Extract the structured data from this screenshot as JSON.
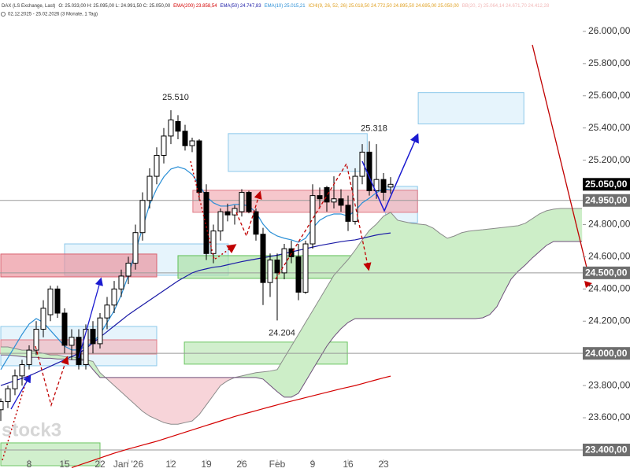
{
  "chart_data": {
    "type": "candlestick",
    "header": [
      {
        "text": "DAX (LS Exchange, Last)",
        "color": "#333333"
      },
      {
        "text": "O: 25.033,00 H: 25.095,00 L: 24.991,50 C: 25.050,00",
        "color": "#333333"
      },
      {
        "text": "EMA(200) 23.858,54",
        "color": "#d40000"
      },
      {
        "text": "EMA(50) 24.747,83",
        "color": "#1a1aa6"
      },
      {
        "text": "EMA(10) 25.015,21",
        "color": "#2a8fd6"
      },
      {
        "text": "ICHI(9, 26, 52, 26) 25.018,50 24.772,50 24.895,50 24.695,00 25.050,00",
        "color": "#e0a020"
      },
      {
        "text": "BB(20, 2) 25.064,14 24.671,70 24.412,28",
        "color": "#f2b8b8"
      }
    ],
    "period": "02.12.2025 - 25.02.2026 (3 Monate, 1 Tag)",
    "watermark": "stock3",
    "categories": [
      null,
      null,
      null,
      null,
      "8",
      null,
      null,
      null,
      null,
      "15",
      null,
      null,
      null,
      null,
      "22",
      null,
      null,
      null,
      "Jan '26",
      null,
      null,
      null,
      null,
      null,
      "12",
      null,
      null,
      null,
      null,
      "19",
      null,
      null,
      null,
      null,
      "26",
      null,
      null,
      null,
      null,
      "Feb",
      null,
      null,
      null,
      null,
      "9",
      null,
      null,
      null,
      null,
      "16",
      null,
      null,
      null,
      null,
      "23",
      null,
      null,
      null,
      null,
      null,
      null,
      null,
      null,
      null,
      null,
      null,
      null,
      null,
      null,
      null,
      null,
      null,
      null,
      null,
      null,
      null,
      null,
      null,
      null,
      null,
      null,
      null,
      null
    ],
    "open": [
      23650,
      23700,
      23780,
      23860,
      23930,
      24020,
      24150,
      24240,
      24400,
      24250,
      24050,
      24100,
      23930,
      24150,
      24060,
      24220,
      24300,
      24400,
      24480,
      24560,
      24750,
      24950,
      25100,
      25230,
      25350,
      25440,
      25380,
      25290,
      25320,
      25000,
      24620,
      24760,
      24880,
      24860,
      24880,
      25000,
      24880,
      24740,
      24440,
      24580,
      24500,
      24650,
      24600,
      24380,
      24680,
      24980,
      25030,
      24940,
      24960,
      24920,
      24820,
      25100,
      25250,
      25010,
      25080,
      25033,
      null,
      null,
      null,
      null,
      null,
      null,
      null,
      null,
      null,
      null,
      null,
      null,
      null,
      null,
      null,
      null,
      null,
      null,
      null,
      null,
      null,
      null,
      null,
      null,
      null,
      null,
      null
    ],
    "high": [
      23720,
      23800,
      23900,
      23960,
      24050,
      24200,
      24330,
      24420,
      24420,
      24280,
      24150,
      24150,
      24180,
      24200,
      24250,
      24350,
      24450,
      24520,
      24600,
      24800,
      25000,
      25150,
      25280,
      25400,
      25510,
      25480,
      25420,
      25340,
      25330,
      25050,
      24800,
      24900,
      24930,
      24920,
      25020,
      25010,
      24900,
      24780,
      24620,
      24620,
      24680,
      24700,
      24680,
      24700,
      25050,
      25030,
      25040,
      25100,
      25020,
      24980,
      25150,
      25300,
      25318,
      25300,
      25120,
      25095,
      null,
      null,
      null,
      null,
      null,
      null,
      null,
      null,
      null,
      null,
      null,
      null,
      null,
      null,
      null,
      null,
      null,
      null,
      null,
      null,
      null,
      null,
      null,
      null,
      null,
      null,
      null
    ],
    "low": [
      23580,
      23660,
      23740,
      23800,
      23900,
      23990,
      24100,
      24200,
      24220,
      24000,
      23960,
      23900,
      23900,
      24000,
      24030,
      24150,
      24250,
      24350,
      24430,
      24520,
      24700,
      24900,
      25050,
      25180,
      25300,
      25330,
      25260,
      25250,
      24950,
      24580,
      24560,
      24700,
      24820,
      24800,
      24850,
      24870,
      24700,
      24300,
      24350,
      24204,
      24460,
      24560,
      24330,
      24370,
      24650,
      24900,
      24880,
      24900,
      24880,
      24760,
      24800,
      25050,
      24980,
      24960,
      24950,
      24991.5,
      null,
      null,
      null,
      null,
      null,
      null,
      null,
      null,
      null,
      null,
      null,
      null,
      null,
      null,
      null,
      null,
      null,
      null,
      null,
      null,
      null,
      null,
      null,
      null,
      null,
      null,
      null
    ],
    "close": [
      23700,
      23780,
      23860,
      23930,
      24020,
      24150,
      24280,
      24400,
      24250,
      24050,
      24100,
      23930,
      24150,
      24060,
      24220,
      24300,
      24400,
      24480,
      24560,
      24750,
      24950,
      25100,
      25230,
      25350,
      25450,
      25380,
      25290,
      25320,
      25000,
      24620,
      24760,
      24880,
      24860,
      24900,
      25000,
      24880,
      24740,
      24440,
      24580,
      24500,
      24650,
      24600,
      24380,
      24680,
      24980,
      24960,
      24940,
      24960,
      24920,
      24820,
      25100,
      25250,
      25010,
      25080,
      25000,
      25050,
      null,
      null,
      null,
      null,
      null,
      null,
      null,
      null,
      null,
      null,
      null,
      null,
      null,
      null,
      null,
      null,
      null,
      null,
      null,
      null,
      null,
      null,
      null,
      null,
      null,
      null,
      null
    ],
    "candle_colors": {
      "up": "#ffffff",
      "down": "#000000",
      "edge": "#000000"
    },
    "series": [
      {
        "color": "#d40000",
        "values": [
          null,
          null,
          null,
          null,
          null,
          null,
          null,
          null,
          null,
          null,
          23290,
          23305,
          23320,
          23335,
          23350,
          23365,
          23380,
          23393,
          23406,
          23418,
          23430,
          23442,
          23454,
          23468,
          23482,
          23496,
          23510,
          23524,
          23538,
          23552,
          23566,
          23580,
          23594,
          23608,
          23620,
          23632,
          23644,
          23656,
          23668,
          23680,
          23692,
          23703,
          23714,
          23725,
          23736,
          23747,
          23758,
          23769,
          23780,
          23790,
          23800,
          23812,
          23824,
          23836,
          23848,
          23858.54,
          null,
          null,
          null,
          null,
          null,
          null,
          null,
          null,
          null,
          null,
          null,
          null,
          null,
          null,
          null,
          null,
          null,
          null,
          null,
          null,
          null,
          null,
          null,
          null,
          null,
          null,
          null
        ]
      },
      {
        "color": "#1a1aa6",
        "values": [
          23800,
          23815,
          23830,
          23845,
          23860,
          23880,
          23900,
          23920,
          23940,
          23960,
          23980,
          24000,
          24030,
          24065,
          24100,
          24135,
          24170,
          24205,
          24240,
          24270,
          24300,
          24330,
          24360,
          24390,
          24420,
          24450,
          24475,
          24500,
          24515,
          24525,
          24535,
          24540,
          24550,
          24560,
          24570,
          24578,
          24586,
          24594,
          24602,
          24610,
          24620,
          24630,
          24640,
          24650,
          24660,
          24670,
          24678,
          24686,
          24694,
          24700,
          24705,
          24715,
          24725,
          24735,
          24742,
          24747.83,
          null,
          null,
          null,
          null,
          null,
          null,
          null,
          null,
          null,
          null,
          null,
          null,
          null,
          null,
          null,
          null,
          null,
          null,
          null,
          null,
          null,
          null,
          null,
          null,
          null,
          null,
          null
        ]
      },
      {
        "color": "#2a8fd6",
        "values": [
          23899,
          23972,
          24045,
          24118,
          24182,
          24216,
          24192,
          24143,
          24094,
          24045,
          24021,
          24021,
          24045,
          24070,
          24118,
          24192,
          24265,
          24363,
          24485,
          24632,
          24778,
          24925,
          25023,
          25096,
          25145,
          25159,
          25145,
          25111,
          25047,
          24974,
          24935,
          24915,
          24915,
          24925,
          24925,
          24915,
          24876,
          24803,
          24754,
          24729,
          24715,
          24705,
          24690,
          24715,
          24778,
          24827,
          24852,
          24866,
          24866,
          24852,
          24886,
          24935,
          24964,
          24998,
          25023,
          25015.21,
          null,
          null,
          null,
          null,
          null,
          null,
          null,
          null,
          null,
          null,
          null,
          null,
          null,
          null,
          null,
          null,
          null,
          null,
          null,
          null,
          null,
          null,
          null,
          null,
          null,
          null,
          null
        ]
      }
    ],
    "cloud": {
      "up_fill": "#cdeec8",
      "down_fill": "#f7d4d9",
      "a": {
        "color": "#8a8a8a",
        "values": [
          24040,
          24040,
          24030,
          24020,
          24020,
          24010,
          24000,
          23990,
          23990,
          23980,
          23980,
          23970,
          23960,
          23950,
          23880,
          23840,
          23800,
          23760,
          23720,
          23680,
          23640,
          23610,
          23590,
          23570,
          23560,
          23560,
          23570,
          23580,
          23620,
          23680,
          23740,
          23800,
          23830,
          23850,
          23860,
          23870,
          23880,
          23885,
          23890,
          23899,
          23972,
          24045,
          24118,
          24192,
          24265,
          24338,
          24412,
          24485,
          24534,
          24583,
          24641,
          24705,
          24764,
          24803,
          24852,
          24876,
          24827,
          24817,
          24808,
          24803,
          24798,
          24778,
          24744,
          24715,
          24729,
          24749,
          24759,
          24764,
          24768,
          24773,
          24778,
          24783,
          24788,
          24793,
          24808,
          24837,
          24866,
          24886,
          24896,
          24900,
          24900,
          24900,
          24900
        ]
      },
      "b": {
        "color": "#6d4f7a",
        "values": [
          23990,
          23990,
          23985,
          23980,
          23975,
          23975,
          23970,
          23970,
          23965,
          23965,
          23960,
          23960,
          23955,
          23900,
          23850,
          23850,
          23850,
          23850,
          23850,
          23850,
          23850,
          23850,
          23850,
          23850,
          23850,
          23850,
          23850,
          23850,
          23850,
          23850,
          23850,
          23850,
          23850,
          23850,
          23850,
          23850,
          23850,
          23840,
          23801,
          23762,
          23728,
          23728,
          23752,
          23825,
          23899,
          23972,
          24045,
          24104,
          24153,
          24192,
          24216,
          24216,
          24216,
          24216,
          24216,
          24216,
          24216,
          24216,
          24216,
          24216,
          24216,
          24216,
          24216,
          24216,
          24216,
          24216,
          24216,
          24216,
          24221,
          24241,
          24290,
          24378,
          24461,
          24510,
          24549,
          24593,
          24632,
          24671,
          24695,
          24695,
          24695,
          24695,
          24695
        ]
      }
    },
    "zones": [
      {
        "x": [
          9,
          32.1
        ],
        "y": [
          24485,
          24680
        ],
        "fill": "#d9eefa",
        "stroke": "#8cc8ea"
      },
      {
        "x": [
          0,
          22
        ],
        "y": [
          23923,
          24167
        ],
        "fill": "#d9eefa",
        "stroke": "#8cc8ea"
      },
      {
        "x": [
          32.1,
          51.7
        ],
        "y": [
          25130,
          25365
        ],
        "fill": "#d9eefa",
        "stroke": "#8cc8ea"
      },
      {
        "x": [
          58.9,
          73.8
        ],
        "y": [
          25425,
          25620
        ],
        "fill": "#d9eefa",
        "stroke": "#8cc8ea"
      },
      {
        "x": [
          54.3,
          58.8
        ],
        "y": [
          24812,
          25037
        ],
        "fill": "#d9eefa",
        "stroke": "#8cc8ea"
      },
      {
        "x": [
          27.1,
          58.8
        ],
        "y": [
          24876,
          25013
        ],
        "fill": "#f1a9b1",
        "stroke": "#e07a86"
      },
      {
        "x": [
          0,
          22
        ],
        "y": [
          24475,
          24617
        ],
        "fill": "#eb8e98",
        "stroke": "#d8606e"
      },
      {
        "x": [
          0,
          22
        ],
        "y": [
          23996,
          24084
        ],
        "fill": "#f1b3ba",
        "stroke": "#e07a86"
      },
      {
        "x": [
          25,
          58.9
        ],
        "y": [
          24466,
          24607
        ],
        "fill": "#a9e0a2",
        "stroke": "#5fbf56"
      },
      {
        "x": [
          25.9,
          48.9
        ],
        "y": [
          23933,
          24070
        ],
        "fill": "#b8e6b2",
        "stroke": "#6cc563"
      },
      {
        "x": [
          0,
          14
        ],
        "y": [
          23302,
          23444
        ],
        "fill": "#b8e6b2",
        "stroke": "#6cc563"
      }
    ],
    "levels": [
      {
        "value": 25050,
        "label": "25.050,00",
        "style": "current"
      },
      {
        "value": 24950,
        "label": "24.950,00",
        "style": "level"
      },
      {
        "value": 24500,
        "label": "24.500,00",
        "style": "level"
      },
      {
        "value": 24000,
        "label": "24.000,00",
        "style": "level"
      },
      {
        "value": 23400,
        "label": "23.400,00",
        "style": "level"
      }
    ],
    "annotations": [
      {
        "value": 25510,
        "label": "25.510",
        "of": "high"
      },
      {
        "value": 25318,
        "label": "25.318",
        "of": "high"
      },
      {
        "value": 24204,
        "label": "24.204",
        "of": "low"
      }
    ],
    "ylim": [
      23263,
      26195
    ],
    "yticks": [
      {
        "value": 26000,
        "label": "26.000,00"
      },
      {
        "value": 25800,
        "label": "25.800,00"
      },
      {
        "value": 25600,
        "label": "25.600,00"
      },
      {
        "value": 25400,
        "label": "25.400,00"
      },
      {
        "value": 25200,
        "label": "25.200,00"
      },
      {
        "value": 24800,
        "label": "24.800,00"
      },
      {
        "value": 24600,
        "label": "24.600,00"
      },
      {
        "value": 24400,
        "label": "24.400,00"
      },
      {
        "value": 24200,
        "label": "24.200,00"
      },
      {
        "value": 23800,
        "label": "23.800,00"
      },
      {
        "value": 23600,
        "label": "23.600,00"
      }
    ]
  }
}
